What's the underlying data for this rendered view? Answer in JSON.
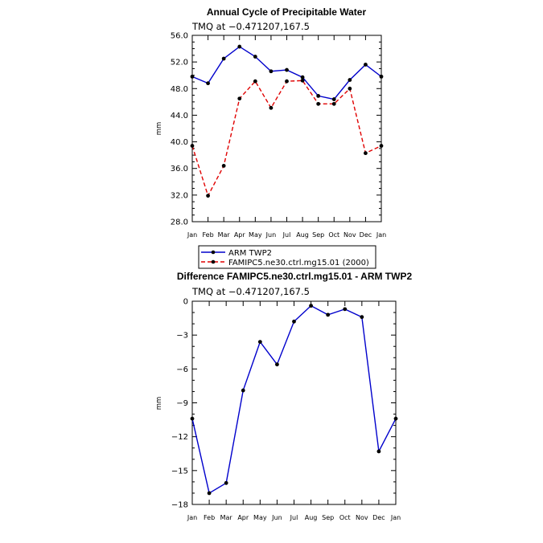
{
  "chart_data": [
    {
      "type": "line",
      "title": "Annual Cycle of Precipitable Water",
      "subtitle": "TMQ at −0.471207,167.5",
      "xlabel": "",
      "ylabel": "mm",
      "categories": [
        "Jan",
        "Feb",
        "Mar",
        "Apr",
        "May",
        "Jun",
        "Jul",
        "Aug",
        "Sep",
        "Oct",
        "Nov",
        "Dec",
        "Jan"
      ],
      "ylim": [
        28.0,
        56.0
      ],
      "yticks": [
        "28.0",
        "32.0",
        "36.0",
        "40.0",
        "44.0",
        "48.0",
        "52.0",
        "56.0"
      ],
      "grid": false,
      "legend_position": "bottom",
      "series": [
        {
          "name": "ARM TWP2",
          "color": "#0000cc",
          "dash": "solid",
          "values": [
            49.8,
            48.8,
            52.5,
            54.3,
            52.8,
            50.6,
            50.8,
            49.7,
            46.9,
            46.4,
            49.3,
            51.6,
            49.8
          ]
        },
        {
          "name": "FAMIPC5.ne30.ctrl.mg15.01 (2000)",
          "color": "#e00000",
          "dash": "dashed",
          "values": [
            39.4,
            31.9,
            36.4,
            46.5,
            49.1,
            45.1,
            49.1,
            49.2,
            45.7,
            45.7,
            48.0,
            38.3,
            39.4
          ]
        }
      ]
    },
    {
      "type": "line",
      "title": "Difference FAMIPC5.ne30.ctrl.mg15.01 - ARM TWP2",
      "subtitle": "TMQ at −0.471207,167.5",
      "xlabel": "",
      "ylabel": "mm",
      "categories": [
        "Jan",
        "Feb",
        "Mar",
        "Apr",
        "May",
        "Jun",
        "Jul",
        "Aug",
        "Sep",
        "Oct",
        "Nov",
        "Dec",
        "Jan"
      ],
      "ylim": [
        -18,
        0
      ],
      "yticks": [
        "−18",
        "−15",
        "−12",
        "−9",
        "−6",
        "−3",
        "0"
      ],
      "grid": false,
      "series": [
        {
          "name": "",
          "color": "#0000cc",
          "dash": "solid",
          "values": [
            -10.4,
            -17.0,
            -16.1,
            -7.9,
            -3.6,
            -5.6,
            -1.8,
            -0.4,
            -1.2,
            -0.7,
            -1.4,
            -13.3,
            -10.4
          ]
        }
      ]
    }
  ]
}
